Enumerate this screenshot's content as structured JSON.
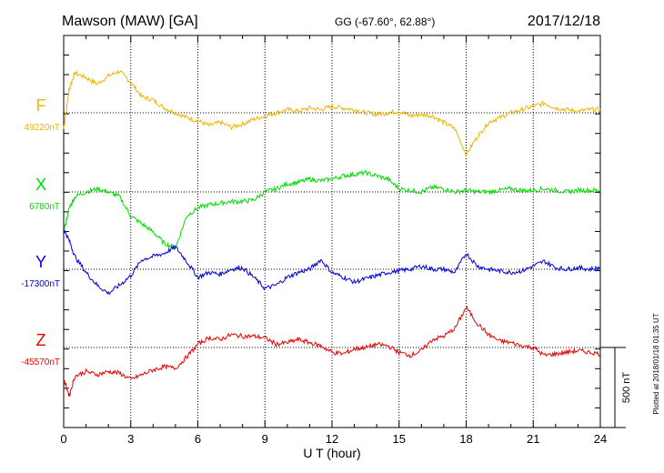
{
  "chart_data": {
    "type": "line",
    "title": "Mawson (MAW)  [GA]",
    "coords": "GG (-67.60°,  62.88°)",
    "date": "2017/12/18",
    "xlabel": "U T (hour)",
    "xlim": [
      0,
      24
    ],
    "x_ticks": [
      "0",
      "3",
      "6",
      "9",
      "12",
      "15",
      "18",
      "21",
      "24"
    ],
    "scale_label": "500 nT",
    "scale_nT": 500,
    "plotted_note": "Plotted at 2018/01/18 01:35 UT",
    "grid": true,
    "series": [
      {
        "name": "F",
        "baseline": "49220nT",
        "color": "#f0b400",
        "x": [
          0,
          0.25,
          0.5,
          1,
          1.5,
          2,
          2.5,
          3,
          3.5,
          4,
          4.5,
          5,
          5.5,
          6,
          6.5,
          7,
          7.5,
          8,
          8.5,
          9,
          9.5,
          10,
          10.5,
          11,
          11.5,
          12,
          12.5,
          13,
          13.5,
          14,
          14.5,
          15,
          15.5,
          16,
          16.5,
          17,
          17.5,
          18,
          18.5,
          19,
          19.5,
          20,
          20.5,
          21,
          21.5,
          22,
          22.5,
          23,
          23.5,
          24
        ],
        "y": [
          -100,
          150,
          250,
          220,
          180,
          230,
          260,
          190,
          100,
          80,
          30,
          0,
          -30,
          -50,
          -80,
          -60,
          -90,
          -70,
          -40,
          -20,
          0,
          20,
          10,
          30,
          20,
          40,
          30,
          20,
          0,
          -10,
          0,
          10,
          -20,
          -10,
          -20,
          -60,
          -100,
          -260,
          -150,
          -60,
          -30,
          0,
          20,
          40,
          60,
          30,
          20,
          10,
          20,
          20
        ]
      },
      {
        "name": "X",
        "baseline": "6780nT",
        "color": "#00dd00",
        "x": [
          0,
          0.25,
          0.5,
          1,
          1.5,
          2,
          2.5,
          3,
          3.5,
          4,
          4.5,
          5,
          5.5,
          6,
          6.5,
          7,
          7.5,
          8,
          8.5,
          9,
          9.5,
          10,
          10.5,
          11,
          11.5,
          12,
          12.5,
          13,
          13.5,
          14,
          14.5,
          15,
          15.5,
          16,
          16.5,
          17,
          17.5,
          18,
          18.5,
          19,
          19.5,
          20,
          20.5,
          21,
          21.5,
          22,
          22.5,
          23,
          23.5,
          24
        ],
        "y": [
          -250,
          -100,
          -30,
          0,
          20,
          0,
          -30,
          -150,
          -200,
          -250,
          -320,
          -350,
          -150,
          -100,
          -80,
          -70,
          -60,
          -60,
          -50,
          0,
          20,
          50,
          60,
          80,
          70,
          80,
          100,
          110,
          120,
          100,
          80,
          20,
          10,
          0,
          30,
          20,
          0,
          10,
          0,
          0,
          10,
          20,
          10,
          10,
          20,
          10,
          0,
          10,
          10,
          10
        ]
      },
      {
        "name": "Y",
        "baseline": "-17300nT",
        "color": "#0000dd",
        "x": [
          0,
          0.25,
          0.5,
          1,
          1.5,
          2,
          2.5,
          3,
          3.5,
          4,
          4.5,
          5,
          5.5,
          6,
          6.5,
          7,
          7.5,
          8,
          8.5,
          9,
          9.5,
          10,
          10.5,
          11,
          11.5,
          12,
          12.5,
          13,
          13.5,
          14,
          14.5,
          15,
          15.5,
          16,
          16.5,
          17,
          17.5,
          18,
          18.5,
          19,
          19.5,
          20,
          20.5,
          21,
          21.5,
          22,
          22.5,
          23,
          23.5,
          24
        ],
        "y": [
          250,
          180,
          80,
          -20,
          -100,
          -150,
          -100,
          -40,
          60,
          80,
          100,
          140,
          50,
          -50,
          -20,
          -30,
          0,
          10,
          -50,
          -120,
          -100,
          -50,
          -20,
          0,
          60,
          -20,
          -50,
          -80,
          -60,
          -40,
          -20,
          -10,
          0,
          20,
          0,
          0,
          -20,
          100,
          20,
          0,
          -10,
          -20,
          -10,
          20,
          50,
          10,
          0,
          10,
          0,
          10
        ]
      },
      {
        "name": "Z",
        "baseline": "-45570nT",
        "color": "#ee0000",
        "x": [
          0,
          0.25,
          0.5,
          1,
          1.5,
          2,
          2.5,
          3,
          3.5,
          4,
          4.5,
          5,
          5.5,
          6,
          6.5,
          7,
          7.5,
          8,
          8.5,
          9,
          9.5,
          10,
          10.5,
          11,
          11.5,
          12,
          12.5,
          13,
          13.5,
          14,
          14.5,
          15,
          15.5,
          16,
          16.5,
          17,
          17.5,
          18,
          18.5,
          19,
          19.5,
          20,
          20.5,
          21,
          21.5,
          22,
          22.5,
          23,
          23.5,
          24
        ],
        "y": [
          -200,
          -300,
          -180,
          -150,
          -170,
          -150,
          -160,
          -200,
          -170,
          -140,
          -120,
          -130,
          -60,
          20,
          60,
          50,
          80,
          70,
          70,
          60,
          20,
          30,
          50,
          30,
          10,
          -30,
          -40,
          -10,
          0,
          20,
          10,
          -30,
          -50,
          -20,
          50,
          70,
          120,
          250,
          150,
          80,
          40,
          30,
          10,
          0,
          -50,
          -40,
          -30,
          -20,
          -30,
          -40
        ]
      }
    ]
  }
}
